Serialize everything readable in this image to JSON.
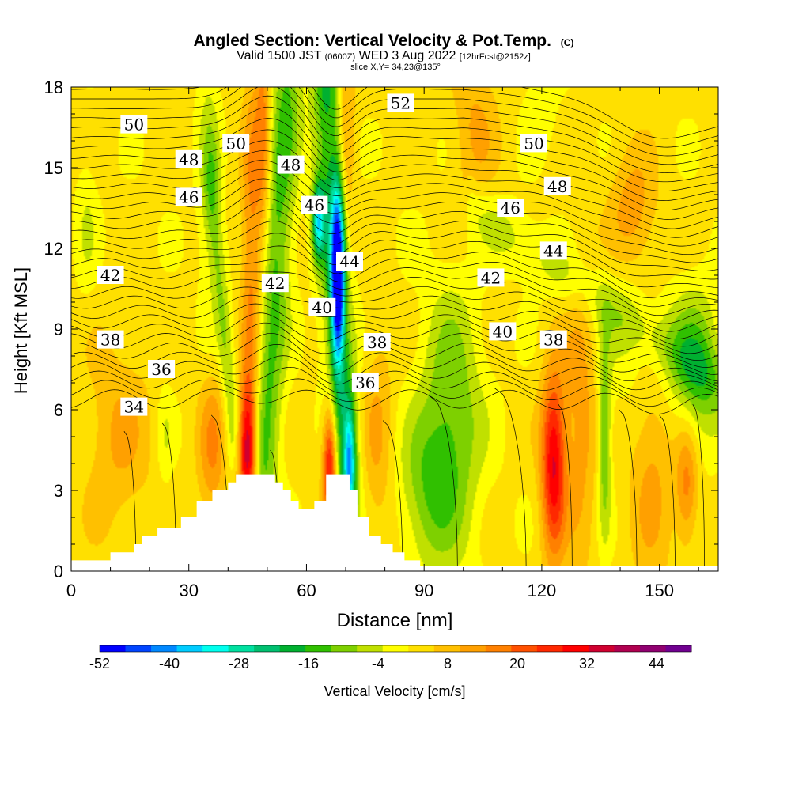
{
  "chart_data": {
    "type": "heatmap",
    "title": "Angled Section: Vertical Velocity & Pot.Temp.",
    "title_mark": "(C)",
    "subtitle_parts": {
      "a": "Valid 1500 JST ",
      "b": "(0600Z)",
      "c": " WED 3 Aug 2022 ",
      "d": "[12hrFcst@2152z]"
    },
    "slice_label": "slice X,Y= 34,23@135°",
    "xlabel": "Distance [nm]",
    "ylabel": "Height [Kft MSL]",
    "xlim": [
      0,
      165
    ],
    "ylim": [
      0,
      18
    ],
    "xticks": [
      "0",
      "30",
      "60",
      "90",
      "120",
      "150"
    ],
    "yticks": [
      "0",
      "3",
      "6",
      "9",
      "12",
      "15",
      "18"
    ],
    "colorbar": {
      "label": "Vertical Velocity [cm/s]",
      "range": [
        -52,
        50
      ],
      "tick_labels": [
        "-52",
        "-40",
        "-28",
        "-16",
        "-4",
        "8",
        "20",
        "32",
        "44"
      ],
      "colors": [
        "#0000ff",
        "#0044ff",
        "#0088ff",
        "#00ccff",
        "#00ffee",
        "#00e0a0",
        "#00c070",
        "#00b030",
        "#30c000",
        "#7ed000",
        "#c0e000",
        "#ffff00",
        "#ffe000",
        "#ffc000",
        "#ffa000",
        "#ff8000",
        "#ff5000",
        "#ff2800",
        "#ff0000",
        "#d00030",
        "#b00050",
        "#900070",
        "#700090"
      ]
    },
    "theta_contour_labels": [
      {
        "text": "50",
        "x": 16,
        "y": 16.6
      },
      {
        "text": "48",
        "x": 30,
        "y": 15.3
      },
      {
        "text": "46",
        "x": 30,
        "y": 13.9
      },
      {
        "text": "42",
        "x": 10,
        "y": 11.0
      },
      {
        "text": "38",
        "x": 10,
        "y": 8.6
      },
      {
        "text": "36",
        "x": 23,
        "y": 7.5
      },
      {
        "text": "34",
        "x": 16,
        "y": 6.1
      },
      {
        "text": "50",
        "x": 42,
        "y": 15.9
      },
      {
        "text": "48",
        "x": 56,
        "y": 15.1
      },
      {
        "text": "46",
        "x": 62,
        "y": 13.6
      },
      {
        "text": "44",
        "x": 71,
        "y": 11.5
      },
      {
        "text": "42",
        "x": 52,
        "y": 10.7
      },
      {
        "text": "40",
        "x": 64,
        "y": 9.8
      },
      {
        "text": "38",
        "x": 78,
        "y": 8.5
      },
      {
        "text": "36",
        "x": 75,
        "y": 7.0
      },
      {
        "text": "52",
        "x": 84,
        "y": 17.4
      },
      {
        "text": "50",
        "x": 118,
        "y": 15.9
      },
      {
        "text": "48",
        "x": 124,
        "y": 14.3
      },
      {
        "text": "46",
        "x": 112,
        "y": 13.5
      },
      {
        "text": "44",
        "x": 123,
        "y": 11.9
      },
      {
        "text": "42",
        "x": 107,
        "y": 10.9
      },
      {
        "text": "40",
        "x": 110,
        "y": 8.9
      },
      {
        "text": "38",
        "x": 123,
        "y": 8.6
      }
    ],
    "terrain": [
      [
        0,
        0.4
      ],
      [
        10,
        0.4
      ],
      [
        10,
        0.7
      ],
      [
        16,
        0.7
      ],
      [
        16,
        1.0
      ],
      [
        18,
        1.0
      ],
      [
        18,
        1.3
      ],
      [
        22,
        1.3
      ],
      [
        22,
        1.6
      ],
      [
        28,
        1.6
      ],
      [
        28,
        2.0
      ],
      [
        32,
        2.0
      ],
      [
        32,
        2.6
      ],
      [
        36,
        2.6
      ],
      [
        36,
        3.0
      ],
      [
        40,
        3.0
      ],
      [
        40,
        3.3
      ],
      [
        42,
        3.3
      ],
      [
        42,
        3.6
      ],
      [
        52,
        3.6
      ],
      [
        52,
        3.3
      ],
      [
        54,
        3.3
      ],
      [
        54,
        3.0
      ],
      [
        56,
        3.0
      ],
      [
        56,
        2.6
      ],
      [
        58,
        2.6
      ],
      [
        58,
        2.3
      ],
      [
        62,
        2.3
      ],
      [
        62,
        2.6
      ],
      [
        65,
        2.6
      ],
      [
        65,
        3.6
      ],
      [
        71,
        3.6
      ],
      [
        71,
        3.0
      ],
      [
        73,
        3.0
      ],
      [
        73,
        2.0
      ],
      [
        76,
        2.0
      ],
      [
        76,
        1.3
      ],
      [
        79,
        1.3
      ],
      [
        79,
        1.0
      ],
      [
        82,
        1.0
      ],
      [
        82,
        0.7
      ],
      [
        85,
        0.7
      ],
      [
        85,
        0.4
      ],
      [
        89,
        0.4
      ],
      [
        89,
        0.2
      ],
      [
        165,
        0.2
      ]
    ],
    "vv_features": [
      {
        "x": 45,
        "y": 4.5,
        "sx": 1.6,
        "sy": 1.8,
        "v": 34
      },
      {
        "x": 66,
        "y": 4.0,
        "sx": 1.3,
        "sy": 1.6,
        "v": 32
      },
      {
        "x": 123,
        "y": 4.0,
        "sx": 2.2,
        "sy": 2.4,
        "v": 30
      },
      {
        "x": 49,
        "y": 16.5,
        "sx": 1.4,
        "sy": 3.5,
        "v": 14
      },
      {
        "x": 46,
        "y": 11.5,
        "sx": 1.8,
        "sy": 5.0,
        "v": 14
      },
      {
        "x": 70,
        "y": 16.0,
        "sx": 1.6,
        "sy": 4.0,
        "v": 12
      },
      {
        "x": 103,
        "y": 16.5,
        "sx": 4.0,
        "sy": 2.5,
        "v": 8
      },
      {
        "x": 143,
        "y": 13.5,
        "sx": 4.0,
        "sy": 1.5,
        "v": 10
      },
      {
        "x": 130,
        "y": 6.0,
        "sx": 3.0,
        "sy": 4.0,
        "v": 10
      },
      {
        "x": 148,
        "y": 5.0,
        "sx": 4.0,
        "sy": 4.0,
        "v": 10
      },
      {
        "x": 157,
        "y": 3.2,
        "sx": 2.0,
        "sy": 1.5,
        "v": 14
      },
      {
        "x": 12,
        "y": 5.0,
        "sx": 6.0,
        "sy": 2.5,
        "v": 8
      },
      {
        "x": 36,
        "y": 4.5,
        "sx": 2.5,
        "sy": 2.0,
        "v": 12
      },
      {
        "x": 78,
        "y": 5.0,
        "sx": 3.0,
        "sy": 3.0,
        "v": 8
      },
      {
        "x": 97,
        "y": 5.5,
        "sx": 5.5,
        "sy": 3.5,
        "v": -15
      },
      {
        "x": 90,
        "y": 3.0,
        "sx": 5.0,
        "sy": 2.0,
        "v": -10
      },
      {
        "x": 136,
        "y": 5.0,
        "sx": 1.2,
        "sy": 2.5,
        "v": -16
      },
      {
        "x": 149,
        "y": 8.0,
        "sx": 8.0,
        "sy": 2.0,
        "v": -8
      },
      {
        "x": 160,
        "y": 7.5,
        "sx": 4.0,
        "sy": 2.0,
        "v": -12
      },
      {
        "x": 35,
        "y": 15.0,
        "sx": 2.0,
        "sy": 3.5,
        "v": -8
      },
      {
        "x": 120,
        "y": 17.5,
        "sx": 3.0,
        "sy": 1.2,
        "v": -5
      },
      {
        "x": 4,
        "y": 13.0,
        "sx": 2.0,
        "sy": 2.0,
        "v": -5
      },
      {
        "x": 24,
        "y": 5.0,
        "sx": 1.5,
        "sy": 1.5,
        "v": -5
      }
    ],
    "vv_bands": [
      {
        "x0": 55,
        "y0": 18,
        "x1": 49,
        "y1": 4,
        "w": 2.6,
        "v": -16
      },
      {
        "x0": 65,
        "y0": 18,
        "x1": 70,
        "y1": 4,
        "w": 2.6,
        "v": -20
      },
      {
        "x0": 36,
        "y0": 14,
        "x1": 41,
        "y1": 5.5,
        "w": 1.3,
        "v": -10
      },
      {
        "x0": 102,
        "y0": 13.5,
        "x1": 165,
        "y1": 7.0,
        "w": 0.9,
        "v": -7
      }
    ],
    "vv_cores": [
      {
        "x": 68,
        "y": 11.0,
        "sx": 1.2,
        "sy": 2.2,
        "v": -52
      },
      {
        "x": 63,
        "y": 13.0,
        "sx": 1.1,
        "sy": 1.0,
        "v": -30
      },
      {
        "x": 71,
        "y": 4.0,
        "sx": 1.0,
        "sy": 1.5,
        "v": -26
      }
    ]
  }
}
